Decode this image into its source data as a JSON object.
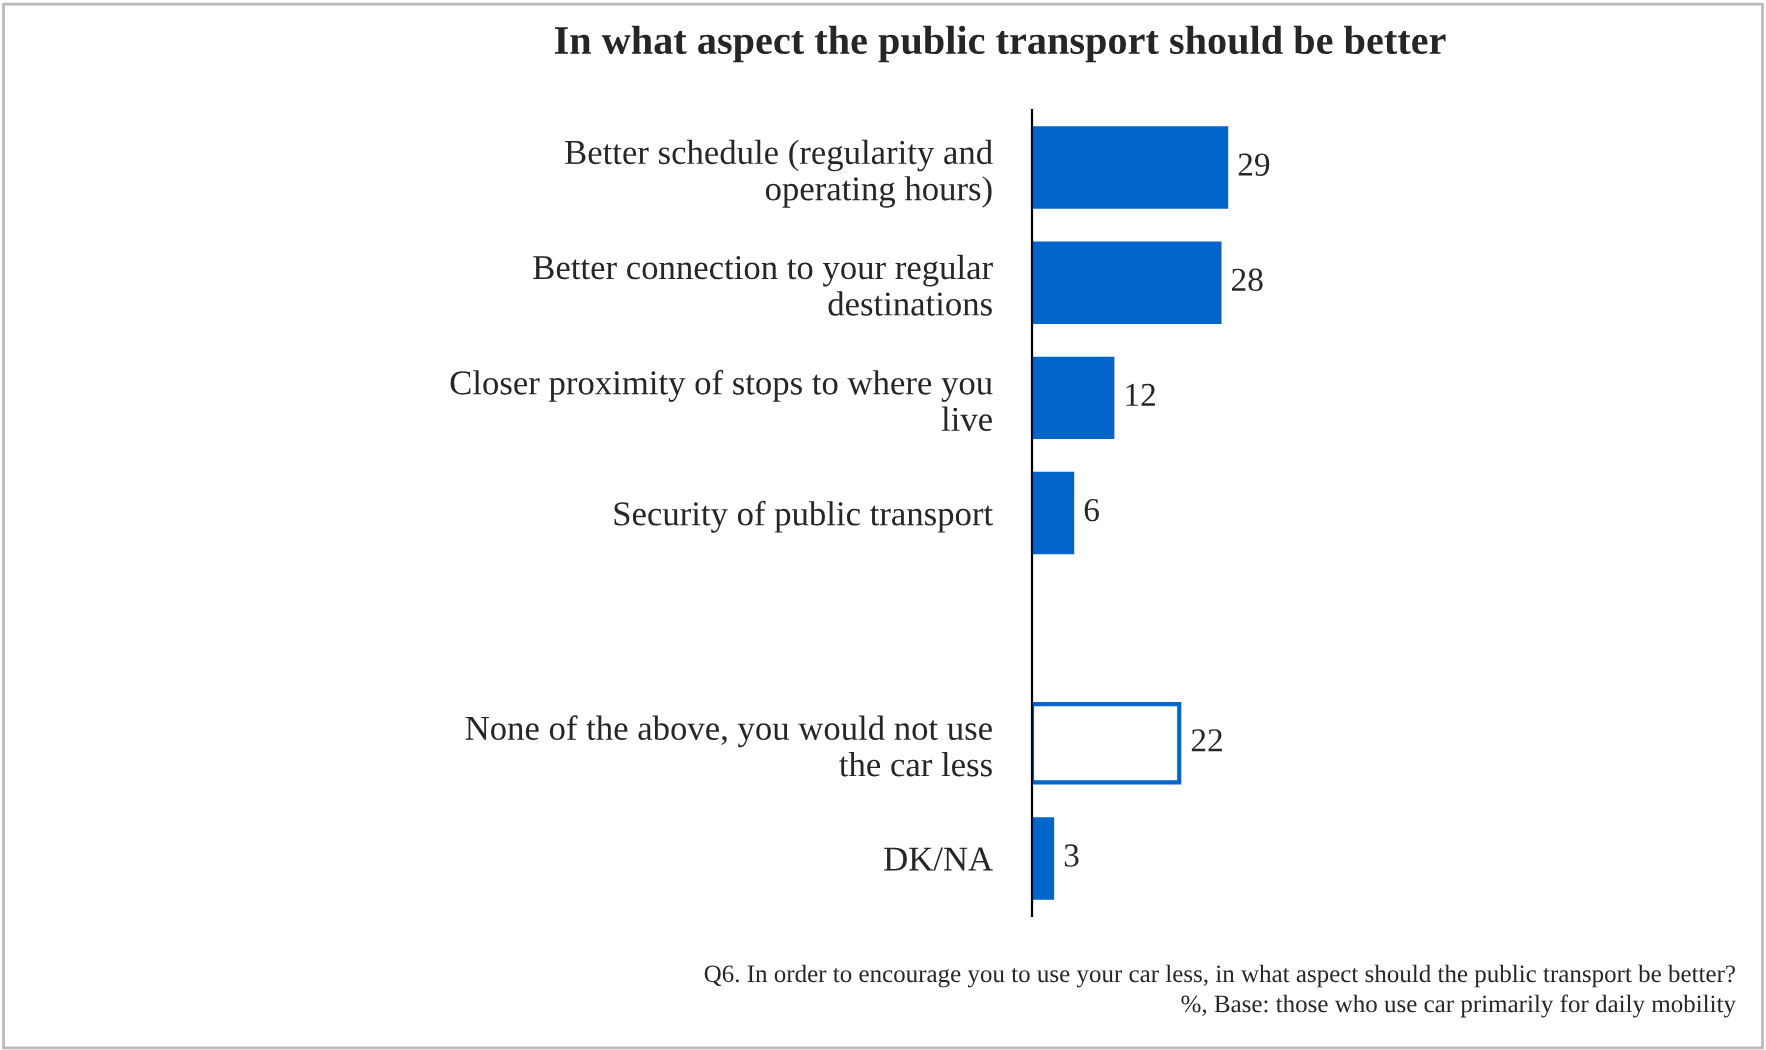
{
  "chart_data": {
    "type": "bar",
    "orientation": "horizontal",
    "title": "In what aspect the public transport should be better",
    "categories": [
      "Better schedule (regularity and\noperating hours)",
      "Better connection to your regular\ndestinations",
      "Closer proximity of stops to where you\nlive",
      "Security of public transport",
      null,
      "None of the above, you would not use\nthe car less",
      "DK/NA"
    ],
    "series": [
      {
        "color": "#0066cc",
        "values": [
          29,
          28,
          12,
          6,
          null,
          22,
          3
        ]
      }
    ],
    "colors": [
      "#0066cc",
      "#0066cc",
      "#0066cc",
      "#0066cc",
      "#0066cc",
      "#ffffff",
      "#0066cc"
    ],
    "data_labels": true,
    "tick_labels": "y",
    "grid": false,
    "legend": false,
    "annotations": [
      "Q6. In order to encourage you to use your car less, in what aspect should the public transport be better?",
      "%, Base: those who use car primarily for daily mobility"
    ]
  }
}
